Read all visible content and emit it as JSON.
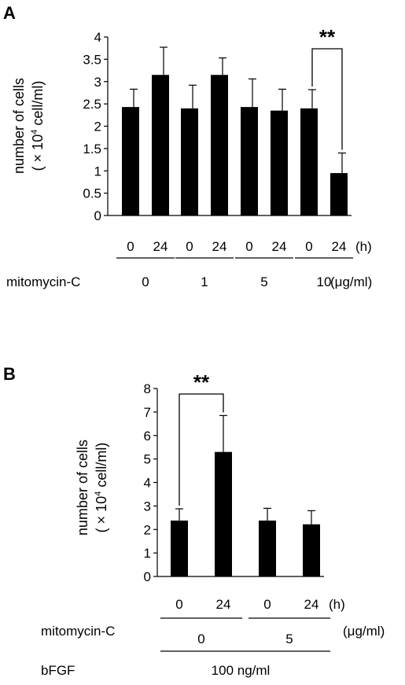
{
  "chart_data": [
    {
      "panel": "A",
      "type": "bar",
      "ylabel_line1": "number of cells",
      "ylabel_line2": "( × 10",
      "ylabel_sup": "4",
      "ylabel_line2b": " cell/ml)",
      "ylim": [
        0,
        4
      ],
      "yticks": [
        "0",
        "0.5",
        "1",
        "1.5",
        "2",
        "2.5",
        "3",
        "3.5",
        "4"
      ],
      "tick_values": [
        0,
        0.5,
        1,
        1.5,
        2,
        2.5,
        3,
        3.5,
        4
      ],
      "categories": [
        "0",
        "24",
        "0",
        "24",
        "0",
        "24",
        "0",
        "24"
      ],
      "values": [
        2.43,
        3.15,
        2.4,
        3.15,
        2.43,
        2.35,
        2.4,
        0.95
      ],
      "errors": [
        0.4,
        0.62,
        0.52,
        0.38,
        0.63,
        0.48,
        0.42,
        0.45
      ],
      "time_unit": "(h)",
      "group_label": "mitomycin-C",
      "groups": [
        "0",
        "1",
        "5",
        "10"
      ],
      "group_unit": "(μg/ml)",
      "significance": "**",
      "grid": false
    },
    {
      "panel": "B",
      "type": "bar",
      "ylabel_line1": "number of cells",
      "ylabel_line2": "( × 10",
      "ylabel_sup": "4",
      "ylabel_line2b": " cell/ml)",
      "ylim": [
        0,
        8
      ],
      "yticks": [
        "0",
        "1",
        "2",
        "3",
        "4",
        "5",
        "6",
        "7",
        "8"
      ],
      "tick_values": [
        0,
        1,
        2,
        3,
        4,
        5,
        6,
        7,
        8
      ],
      "categories": [
        "0",
        "24",
        "0",
        "24"
      ],
      "values": [
        2.38,
        5.3,
        2.38,
        2.22
      ],
      "errors": [
        0.5,
        1.55,
        0.52,
        0.58
      ],
      "time_unit": "(h)",
      "group_label": "mitomycin-C",
      "groups": [
        "0",
        "5"
      ],
      "group_unit": "(μg/ml)",
      "row2_label": "bFGF",
      "row2_value": "100 ng/ml",
      "significance": "**",
      "grid": false
    }
  ]
}
